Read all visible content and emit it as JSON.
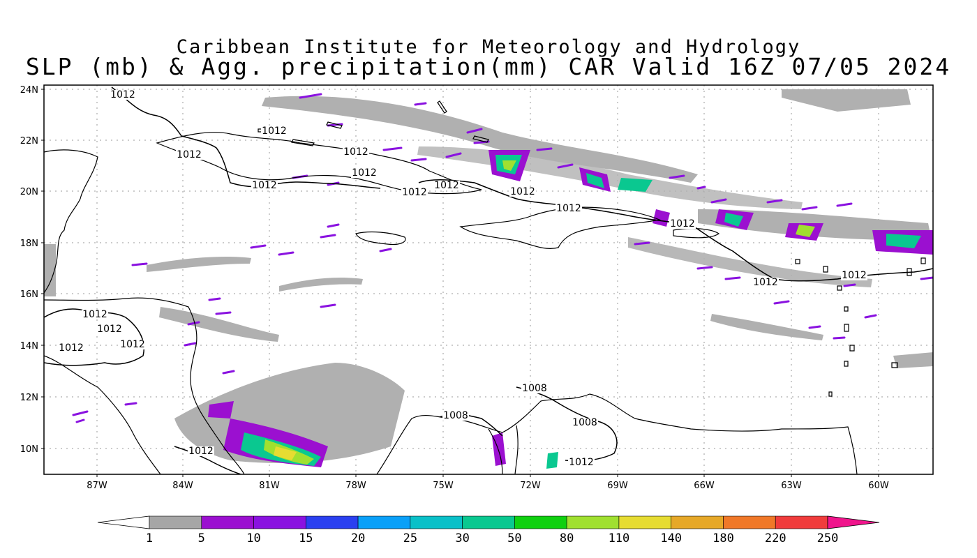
{
  "header": {
    "title_line1": "Caribbean Institute for Meteorology and Hydrology",
    "title_line2": "SLP (mb) & Agg. precipitation(mm) CAR Valid 16Z 07/05 2024"
  },
  "map": {
    "lat_labels": [
      "24N",
      "22N",
      "20N",
      "18N",
      "16N",
      "14N",
      "12N",
      "10N"
    ],
    "lon_labels": [
      "87W",
      "84W",
      "81W",
      "78W",
      "75W",
      "72W",
      "69W",
      "66W",
      "63W",
      "60W"
    ],
    "isobar_labels": [
      "1012",
      "1012",
      "1012",
      "1012",
      "1012",
      "1012",
      "1012",
      "1012",
      "1012",
      "1012",
      "1012",
      "1012",
      "1012",
      "1012",
      "1012",
      "1012",
      "1012",
      "1012",
      "1008",
      "1008",
      "1008",
      "1012"
    ]
  },
  "colorbar": {
    "labels": [
      "1",
      "5",
      "10",
      "15",
      "20",
      "25",
      "30",
      "50",
      "80",
      "110",
      "140",
      "180",
      "220",
      "250"
    ],
    "colors": [
      "#ffffff",
      "#a6a6a6",
      "#9b10d0",
      "#8a12e0",
      "#2a40f0",
      "#0aa0f8",
      "#0ac0c8",
      "#0ac890",
      "#10d010",
      "#a0e030",
      "#e6dc32",
      "#e6a828",
      "#f07828",
      "#f03c3c",
      "#f0148c"
    ]
  }
}
